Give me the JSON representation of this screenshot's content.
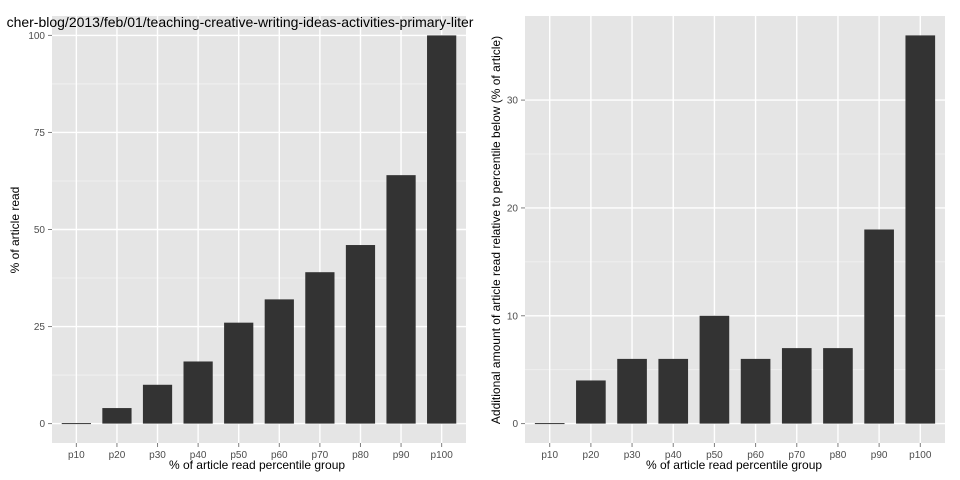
{
  "chart_data": [
    {
      "type": "bar",
      "title": "cher-blog/2013/feb/01/teaching-creative-writing-ideas-activities-primary-liter",
      "xlabel": "% of article read percentile group",
      "ylabel": "% of article read",
      "categories": [
        "p10",
        "p20",
        "p30",
        "p40",
        "p50",
        "p60",
        "p70",
        "p80",
        "p90",
        "p100"
      ],
      "values": [
        0,
        4,
        10,
        16,
        26,
        32,
        39,
        46,
        64,
        100
      ],
      "ylim": [
        -5,
        105
      ],
      "yticks": [
        0,
        25,
        50,
        75,
        100
      ],
      "grid": true,
      "colors": {
        "bar": "#333333",
        "panel": "#e5e5e5",
        "grid": "#ffffff",
        "tick_label": "#4d4d4d"
      }
    },
    {
      "type": "bar",
      "title": "",
      "xlabel": "% of article read percentile group",
      "ylabel": "Additional amount of article read relative to percentile below (% of article)",
      "categories": [
        "p10",
        "p20",
        "p30",
        "p40",
        "p50",
        "p60",
        "p70",
        "p80",
        "p90",
        "p100"
      ],
      "values": [
        0,
        4,
        6,
        6,
        10,
        6,
        7,
        7,
        18,
        36
      ],
      "ylim": [
        -1.8,
        37.8
      ],
      "yticks": [
        0,
        10,
        20,
        30
      ],
      "grid": true,
      "colors": {
        "bar": "#333333",
        "panel": "#e5e5e5",
        "grid": "#ffffff",
        "tick_label": "#4d4d4d"
      }
    }
  ]
}
